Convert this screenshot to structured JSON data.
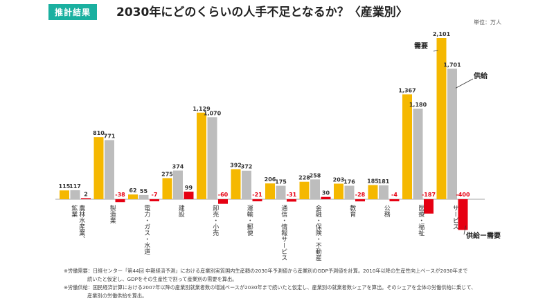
{
  "header": {
    "badge": "推計結果",
    "title": "2030年にどのくらいの人手不足となるか？〈産業別〉",
    "unit": "単位：万人"
  },
  "chart_data": {
    "type": "bar",
    "categories": [
      "農林水産業、鉱業",
      "製造業",
      "電力・ガス・水道",
      "建設",
      "卸売・小売",
      "運輸・郵便",
      "通信・情報サービス",
      "金融・保険・不動産",
      "教育",
      "公務",
      "医療・福祉",
      "サービス"
    ],
    "series": [
      {
        "name": "需要",
        "values": [
          115,
          810,
          62,
          275,
          1129,
          392,
          206,
          228,
          203,
          185,
          1367,
          2101
        ]
      },
      {
        "name": "供給",
        "values": [
          117,
          771,
          55,
          374,
          1070,
          372,
          175,
          258,
          176,
          181,
          1180,
          1701
        ]
      },
      {
        "name": "供給ー需要",
        "values": [
          2,
          -38,
          -7,
          99,
          -60,
          -21,
          -31,
          30,
          -28,
          -4,
          -187,
          -400
        ]
      }
    ],
    "value_labels": [
      [
        "115",
        "810",
        "62",
        "275",
        "1,129",
        "392",
        "206",
        "228",
        "203",
        "185",
        "1,367",
        "2,101"
      ],
      [
        "117",
        "771",
        "55",
        "374",
        "1,070",
        "372",
        "175",
        "258",
        "176",
        "181",
        "1,180",
        "1,701"
      ],
      [
        "2",
        "-38",
        "-7",
        "99",
        "-60",
        "-21",
        "-31",
        "30",
        "-28",
        "-4",
        "-187",
        "-400"
      ]
    ],
    "category_label_lines": [
      [
        "農林水産業、",
        "鉱業"
      ],
      [
        "製造業"
      ],
      [
        "電力・ガス・水道"
      ],
      [
        "建設"
      ],
      [
        "卸売・小売"
      ],
      [
        "運輸・郵便"
      ],
      [
        "通信・情報サービス"
      ],
      [
        "金融・保険・不動産"
      ],
      [
        "教育"
      ],
      [
        "公務"
      ],
      [
        "医療・福祉"
      ],
      [
        "サービス"
      ]
    ],
    "colors": {
      "demand": "#f5b800",
      "supply": "#bdbdbd",
      "gap": "#e60012"
    },
    "ylim": [
      -400,
      2101
    ]
  },
  "notes": [
    {
      "label": "※労働需要：",
      "text": "日経センター「第44回 中期経済予測」における産業別実質国内生産額の2030年予測値から産業別のGDP予測値を計算。2010年以降の生産性向上ペースが2030年まで",
      "cont": "続いたと仮定し、GDPをその生産性で割って産業別の需要を算出。"
    },
    {
      "label": "※労働供給：",
      "text": "国民経済計算における2007年以降の産業別就業者数の増減ペースが2030年まで続いたと仮定し、産業別の就業者数シェアを算出。そのシェアを全体の労働供給に乗じて、",
      "cont": "産業別の労働供給を算出。"
    }
  ]
}
